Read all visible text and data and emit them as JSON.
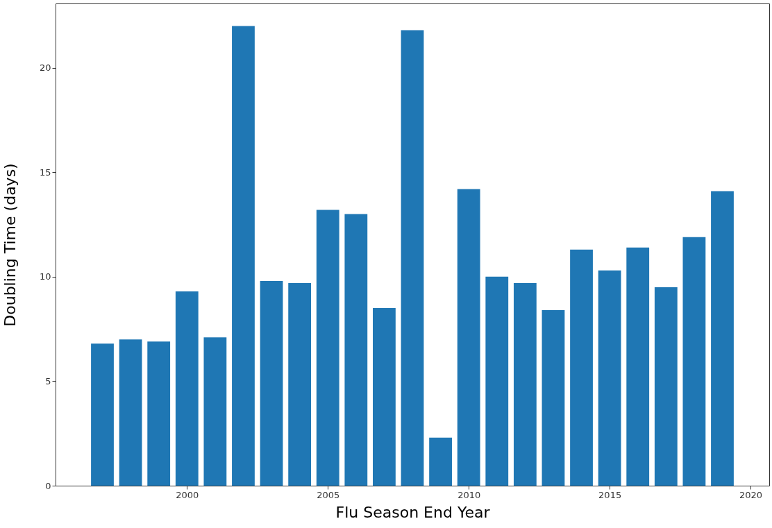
{
  "chart_data": {
    "type": "bar",
    "xlabel": "Flu Season End Year",
    "ylabel": "Doubling Time (days)",
    "x": [
      1997,
      1998,
      1999,
      2000,
      2001,
      2002,
      2003,
      2004,
      2005,
      2006,
      2007,
      2008,
      2009,
      2010,
      2011,
      2012,
      2013,
      2014,
      2015,
      2016,
      2017,
      2018,
      2019
    ],
    "values": [
      6.8,
      7.0,
      6.9,
      9.3,
      7.1,
      22.0,
      9.8,
      9.7,
      13.2,
      13.0,
      8.5,
      21.8,
      2.3,
      14.2,
      10.0,
      9.7,
      8.4,
      11.3,
      10.3,
      11.4,
      9.5,
      11.9,
      14.1
    ],
    "color": "#1f77b4",
    "xlim": [
      1995.46,
      2020.54
    ],
    "xticks": [
      2000,
      2005,
      2010,
      2015,
      2020
    ],
    "ylim": [
      0,
      23.08
    ],
    "yticks": [
      0,
      5,
      10,
      15,
      20
    ],
    "grid": false
  }
}
